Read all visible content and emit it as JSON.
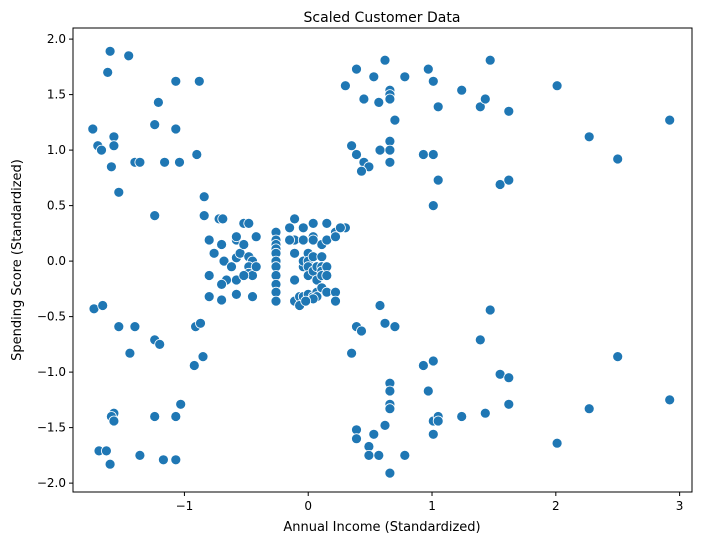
{
  "chart_data": {
    "type": "scatter",
    "title": "Scaled Customer Data",
    "xlabel": "Annual Income (Standardized)",
    "ylabel": "Spending Score (Standardized)",
    "xlim": [
      -1.9,
      3.1
    ],
    "ylim": [
      -2.08,
      2.1
    ],
    "xticks": [
      -1,
      0,
      1,
      2,
      3
    ],
    "xtick_labels": [
      "−1",
      "0",
      "1",
      "2",
      "3"
    ],
    "yticks": [
      -2.0,
      -1.5,
      -1.0,
      -0.5,
      0.0,
      0.5,
      1.0,
      1.5,
      2.0
    ],
    "ytick_labels": [
      "−2.0",
      "−1.5",
      "−1.0",
      "−0.5",
      "0.0",
      "0.5",
      "1.0",
      "1.5",
      "2.0"
    ],
    "grid": false,
    "legend": "none",
    "marker_color": "#1f77b4",
    "marker_edge_color": "#ffffff",
    "points": [
      [
        -1.74,
        1.19
      ],
      [
        -1.7,
        1.04
      ],
      [
        -1.67,
        1.0
      ],
      [
        -1.62,
        1.7
      ],
      [
        -1.6,
        1.89
      ],
      [
        -1.59,
        0.85
      ],
      [
        -1.57,
        1.12
      ],
      [
        -1.57,
        1.04
      ],
      [
        -1.53,
        0.62
      ],
      [
        -1.45,
        1.85
      ],
      [
        -1.4,
        0.89
      ],
      [
        -1.36,
        0.89
      ],
      [
        -1.24,
        1.23
      ],
      [
        -1.21,
        1.43
      ],
      [
        -1.16,
        0.89
      ],
      [
        -1.07,
        1.62
      ],
      [
        -1.07,
        1.19
      ],
      [
        -1.04,
        0.89
      ],
      [
        -0.9,
        0.96
      ],
      [
        -0.88,
        1.62
      ],
      [
        -1.24,
        0.41
      ],
      [
        -0.84,
        0.58
      ],
      [
        -0.84,
        0.41
      ],
      [
        -0.8,
        0.19
      ],
      [
        -0.76,
        0.07
      ],
      [
        -0.72,
        0.38
      ],
      [
        -0.69,
        0.38
      ],
      [
        -0.7,
        0.15
      ],
      [
        -0.68,
        0.0
      ],
      [
        -0.66,
        -0.17
      ],
      [
        -0.7,
        -0.21
      ],
      [
        -0.8,
        -0.13
      ],
      [
        -0.8,
        -0.32
      ],
      [
        -0.7,
        -0.35
      ],
      [
        -0.58,
        0.19
      ],
      [
        -0.58,
        0.22
      ],
      [
        -0.58,
        0.03
      ],
      [
        -0.55,
        0.07
      ],
      [
        -0.52,
        0.34
      ],
      [
        -0.52,
        0.15
      ],
      [
        -0.48,
        0.34
      ],
      [
        -0.48,
        0.04
      ],
      [
        -0.45,
        0.0
      ],
      [
        -0.48,
        -0.05
      ],
      [
        -0.48,
        -0.11
      ],
      [
        -0.45,
        -0.13
      ],
      [
        -0.42,
        0.22
      ],
      [
        -0.42,
        -0.05
      ],
      [
        -0.58,
        -0.17
      ],
      [
        -0.58,
        -0.3
      ],
      [
        -0.62,
        -0.05
      ],
      [
        -0.52,
        -0.13
      ],
      [
        -0.45,
        -0.32
      ],
      [
        -0.26,
        0.26
      ],
      [
        -0.26,
        0.19
      ],
      [
        -0.26,
        0.15
      ],
      [
        -0.26,
        0.11
      ],
      [
        -0.26,
        0.07
      ],
      [
        -0.26,
        0.0
      ],
      [
        -0.26,
        -0.05
      ],
      [
        -0.26,
        -0.13
      ],
      [
        -0.26,
        -0.21
      ],
      [
        -0.26,
        -0.28
      ],
      [
        -0.26,
        -0.36
      ],
      [
        -0.15,
        0.3
      ],
      [
        -0.11,
        0.38
      ],
      [
        -0.11,
        0.19
      ],
      [
        -0.15,
        0.19
      ],
      [
        -0.11,
        0.07
      ],
      [
        -0.11,
        -0.17
      ],
      [
        -0.11,
        -0.36
      ],
      [
        -0.07,
        -0.32
      ],
      [
        -0.07,
        -0.4
      ],
      [
        -0.04,
        -0.32
      ],
      [
        -0.04,
        -0.05
      ],
      [
        -0.04,
        0.0
      ],
      [
        -0.04,
        0.19
      ],
      [
        -0.04,
        0.3
      ],
      [
        -0.0,
        0.07
      ],
      [
        0.0,
        0.0
      ],
      [
        0.0,
        -0.05
      ],
      [
        0.0,
        -0.13
      ],
      [
        0.0,
        -0.3
      ],
      [
        0.04,
        0.34
      ],
      [
        0.04,
        0.22
      ],
      [
        0.04,
        0.19
      ],
      [
        0.04,
        0.04
      ],
      [
        0.04,
        -0.09
      ],
      [
        0.04,
        -0.32
      ],
      [
        0.07,
        -0.05
      ],
      [
        0.07,
        -0.17
      ],
      [
        0.07,
        -0.28
      ],
      [
        0.07,
        -0.32
      ],
      [
        0.11,
        0.15
      ],
      [
        0.11,
        0.04
      ],
      [
        0.11,
        -0.05
      ],
      [
        0.11,
        -0.09
      ],
      [
        0.11,
        -0.13
      ],
      [
        0.11,
        -0.24
      ],
      [
        0.15,
        0.34
      ],
      [
        0.15,
        0.19
      ],
      [
        0.15,
        -0.05
      ],
      [
        0.15,
        -0.13
      ],
      [
        0.15,
        -0.28
      ],
      [
        0.22,
        0.26
      ],
      [
        0.22,
        0.22
      ],
      [
        0.22,
        -0.28
      ],
      [
        0.22,
        -0.36
      ],
      [
        0.3,
        0.3
      ],
      [
        0.04,
        -0.34
      ],
      [
        -0.02,
        -0.36
      ],
      [
        -1.73,
        -0.43
      ],
      [
        -1.66,
        -0.4
      ],
      [
        -1.53,
        -0.59
      ],
      [
        -1.4,
        -0.59
      ],
      [
        -1.44,
        -0.83
      ],
      [
        -1.24,
        -0.71
      ],
      [
        -1.2,
        -0.75
      ],
      [
        -0.91,
        -0.59
      ],
      [
        -0.87,
        -0.56
      ],
      [
        -0.85,
        -0.86
      ],
      [
        -0.92,
        -0.94
      ],
      [
        -1.57,
        -1.37
      ],
      [
        -1.59,
        -1.4
      ],
      [
        -1.57,
        -1.44
      ],
      [
        -1.24,
        -1.4
      ],
      [
        -1.07,
        -1.4
      ],
      [
        -1.03,
        -1.29
      ],
      [
        -1.69,
        -1.71
      ],
      [
        -1.63,
        -1.71
      ],
      [
        -1.6,
        -1.83
      ],
      [
        -1.36,
        -1.75
      ],
      [
        -1.17,
        -1.79
      ],
      [
        -1.07,
        -1.79
      ],
      [
        0.3,
        1.58
      ],
      [
        0.39,
        1.73
      ],
      [
        0.45,
        1.46
      ],
      [
        0.53,
        1.66
      ],
      [
        0.57,
        1.43
      ],
      [
        0.62,
        1.81
      ],
      [
        0.66,
        1.54
      ],
      [
        0.66,
        1.5
      ],
      [
        0.66,
        1.46
      ],
      [
        0.7,
        1.27
      ],
      [
        0.78,
        1.66
      ],
      [
        0.97,
        1.73
      ],
      [
        1.01,
        1.62
      ],
      [
        1.05,
        1.39
      ],
      [
        1.24,
        1.54
      ],
      [
        1.39,
        1.39
      ],
      [
        1.43,
        1.46
      ],
      [
        1.47,
        1.81
      ],
      [
        1.62,
        1.35
      ],
      [
        2.01,
        1.58
      ],
      [
        2.27,
        1.12
      ],
      [
        2.5,
        0.92
      ],
      [
        2.92,
        1.27
      ],
      [
        0.35,
        1.04
      ],
      [
        0.39,
        0.96
      ],
      [
        0.45,
        0.89
      ],
      [
        0.49,
        0.85
      ],
      [
        0.43,
        0.81
      ],
      [
        0.58,
        1.0
      ],
      [
        0.66,
        1.08
      ],
      [
        0.66,
        1.0
      ],
      [
        0.66,
        0.89
      ],
      [
        0.93,
        0.96
      ],
      [
        1.01,
        0.96
      ],
      [
        1.05,
        0.73
      ],
      [
        1.01,
        0.5
      ],
      [
        1.55,
        0.69
      ],
      [
        1.62,
        0.73
      ],
      [
        0.26,
        0.3
      ],
      [
        0.35,
        -0.83
      ],
      [
        0.39,
        -0.59
      ],
      [
        0.43,
        -0.63
      ],
      [
        0.58,
        -0.4
      ],
      [
        0.62,
        -0.56
      ],
      [
        0.7,
        -0.59
      ],
      [
        0.93,
        -0.94
      ],
      [
        1.01,
        -0.9
      ],
      [
        0.97,
        -1.17
      ],
      [
        1.39,
        -0.71
      ],
      [
        1.47,
        -0.44
      ],
      [
        1.55,
        -1.02
      ],
      [
        1.62,
        -1.05
      ],
      [
        2.5,
        -0.86
      ],
      [
        0.66,
        -1.1
      ],
      [
        0.66,
        -1.17
      ],
      [
        0.66,
        -1.29
      ],
      [
        0.66,
        -1.33
      ],
      [
        0.62,
        -1.48
      ],
      [
        0.39,
        -1.52
      ],
      [
        0.39,
        -1.6
      ],
      [
        0.53,
        -1.56
      ],
      [
        0.49,
        -1.67
      ],
      [
        0.49,
        -1.75
      ],
      [
        0.57,
        -1.75
      ],
      [
        0.66,
        -1.91
      ],
      [
        0.78,
        -1.75
      ],
      [
        1.01,
        -1.44
      ],
      [
        1.01,
        -1.56
      ],
      [
        1.05,
        -1.4
      ],
      [
        1.05,
        -1.44
      ],
      [
        1.24,
        -1.4
      ],
      [
        1.43,
        -1.37
      ],
      [
        1.62,
        -1.29
      ],
      [
        2.01,
        -1.64
      ],
      [
        2.27,
        -1.33
      ],
      [
        2.92,
        -1.25
      ]
    ]
  }
}
